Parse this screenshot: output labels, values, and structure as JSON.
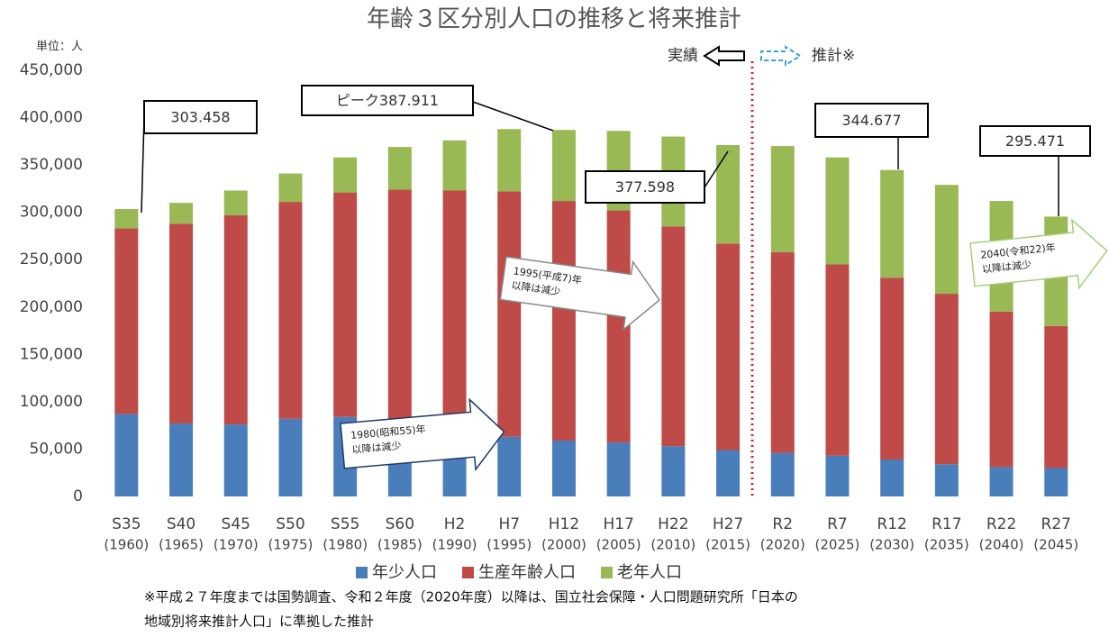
{
  "chart_data": {
    "type": "stacked_bar",
    "title": "年齢３区分別人口の推移と将来推計",
    "unit_label": "単位：人",
    "categories": [
      "S35",
      "S40",
      "S45",
      "S50",
      "S55",
      "S60",
      "H2",
      "H7",
      "H12",
      "H17",
      "H22",
      "H27",
      "R2",
      "R7",
      "R12",
      "R17",
      "R22",
      "R27"
    ],
    "category_years": [
      "(1960)",
      "(1965)",
      "(1970)",
      "(1975)",
      "(1980)",
      "(1985)",
      "(1990)",
      "(1995)",
      "(2000)",
      "(2005)",
      "(2010)",
      "(2015)",
      "(2020)",
      "(2025)",
      "(2030)",
      "(2035)",
      "(2040)",
      "(2045)"
    ],
    "series": [
      {
        "name": "年少人口",
        "color": "#4a7ebb",
        "values": [
          87000,
          77000,
          76000,
          82000,
          84000,
          80000,
          72000,
          63000,
          59000,
          57000,
          53000,
          49000,
          46000,
          43000,
          39000,
          34000,
          31000,
          30000
        ]
      },
      {
        "name": "生産年齢人口",
        "color": "#be4b48",
        "values": [
          196000,
          211000,
          221000,
          229000,
          237000,
          244000,
          251000,
          259000,
          253000,
          245000,
          232000,
          218000,
          212000,
          202000,
          192000,
          180000,
          164000,
          150000
        ]
      },
      {
        "name": "老年人口",
        "color": "#98b954",
        "values": [
          20458,
          22000,
          26000,
          30000,
          37000,
          45000,
          53000,
          65911,
          75000,
          84000,
          95000,
          104000,
          112000,
          113000,
          113677,
          115000,
          117000,
          115471
        ]
      }
    ],
    "ylim": [
      0,
      450000
    ],
    "yticks": [
      0,
      {
        "value": 50000,
        "label": "50,000"
      },
      {
        "value": 100000,
        "label": "100,000"
      },
      {
        "value": 150000,
        "label": "150,000"
      },
      {
        "value": 200000,
        "label": "200,000"
      },
      {
        "value": 250000,
        "label": "250,000"
      },
      {
        "value": 300000,
        "label": "300,000"
      },
      {
        "value": 350000,
        "label": "350,000"
      },
      {
        "value": 400000,
        "label": "400,000"
      },
      {
        "value": 450000,
        "label": "450,000"
      }
    ],
    "annotations": [
      "303.458",
      "ピーク387.911",
      "377.598",
      "344.677",
      "295.471"
    ],
    "notes": [
      [
        "1995(平成7)年",
        "以降は減少"
      ],
      [
        "1980(昭和55)年",
        "以降は減少"
      ],
      [
        "2040(令和22)年",
        "以降は減少"
      ]
    ],
    "actual_label": "実績",
    "projection_label": "推計※",
    "footnote": [
      "※平成２７年度までは国勢調査、令和２年度（2020年度）以降は、国立社会保障・人口問題研究所「日本の",
      "地域別将来推計人口」に準拠した推計"
    ]
  }
}
